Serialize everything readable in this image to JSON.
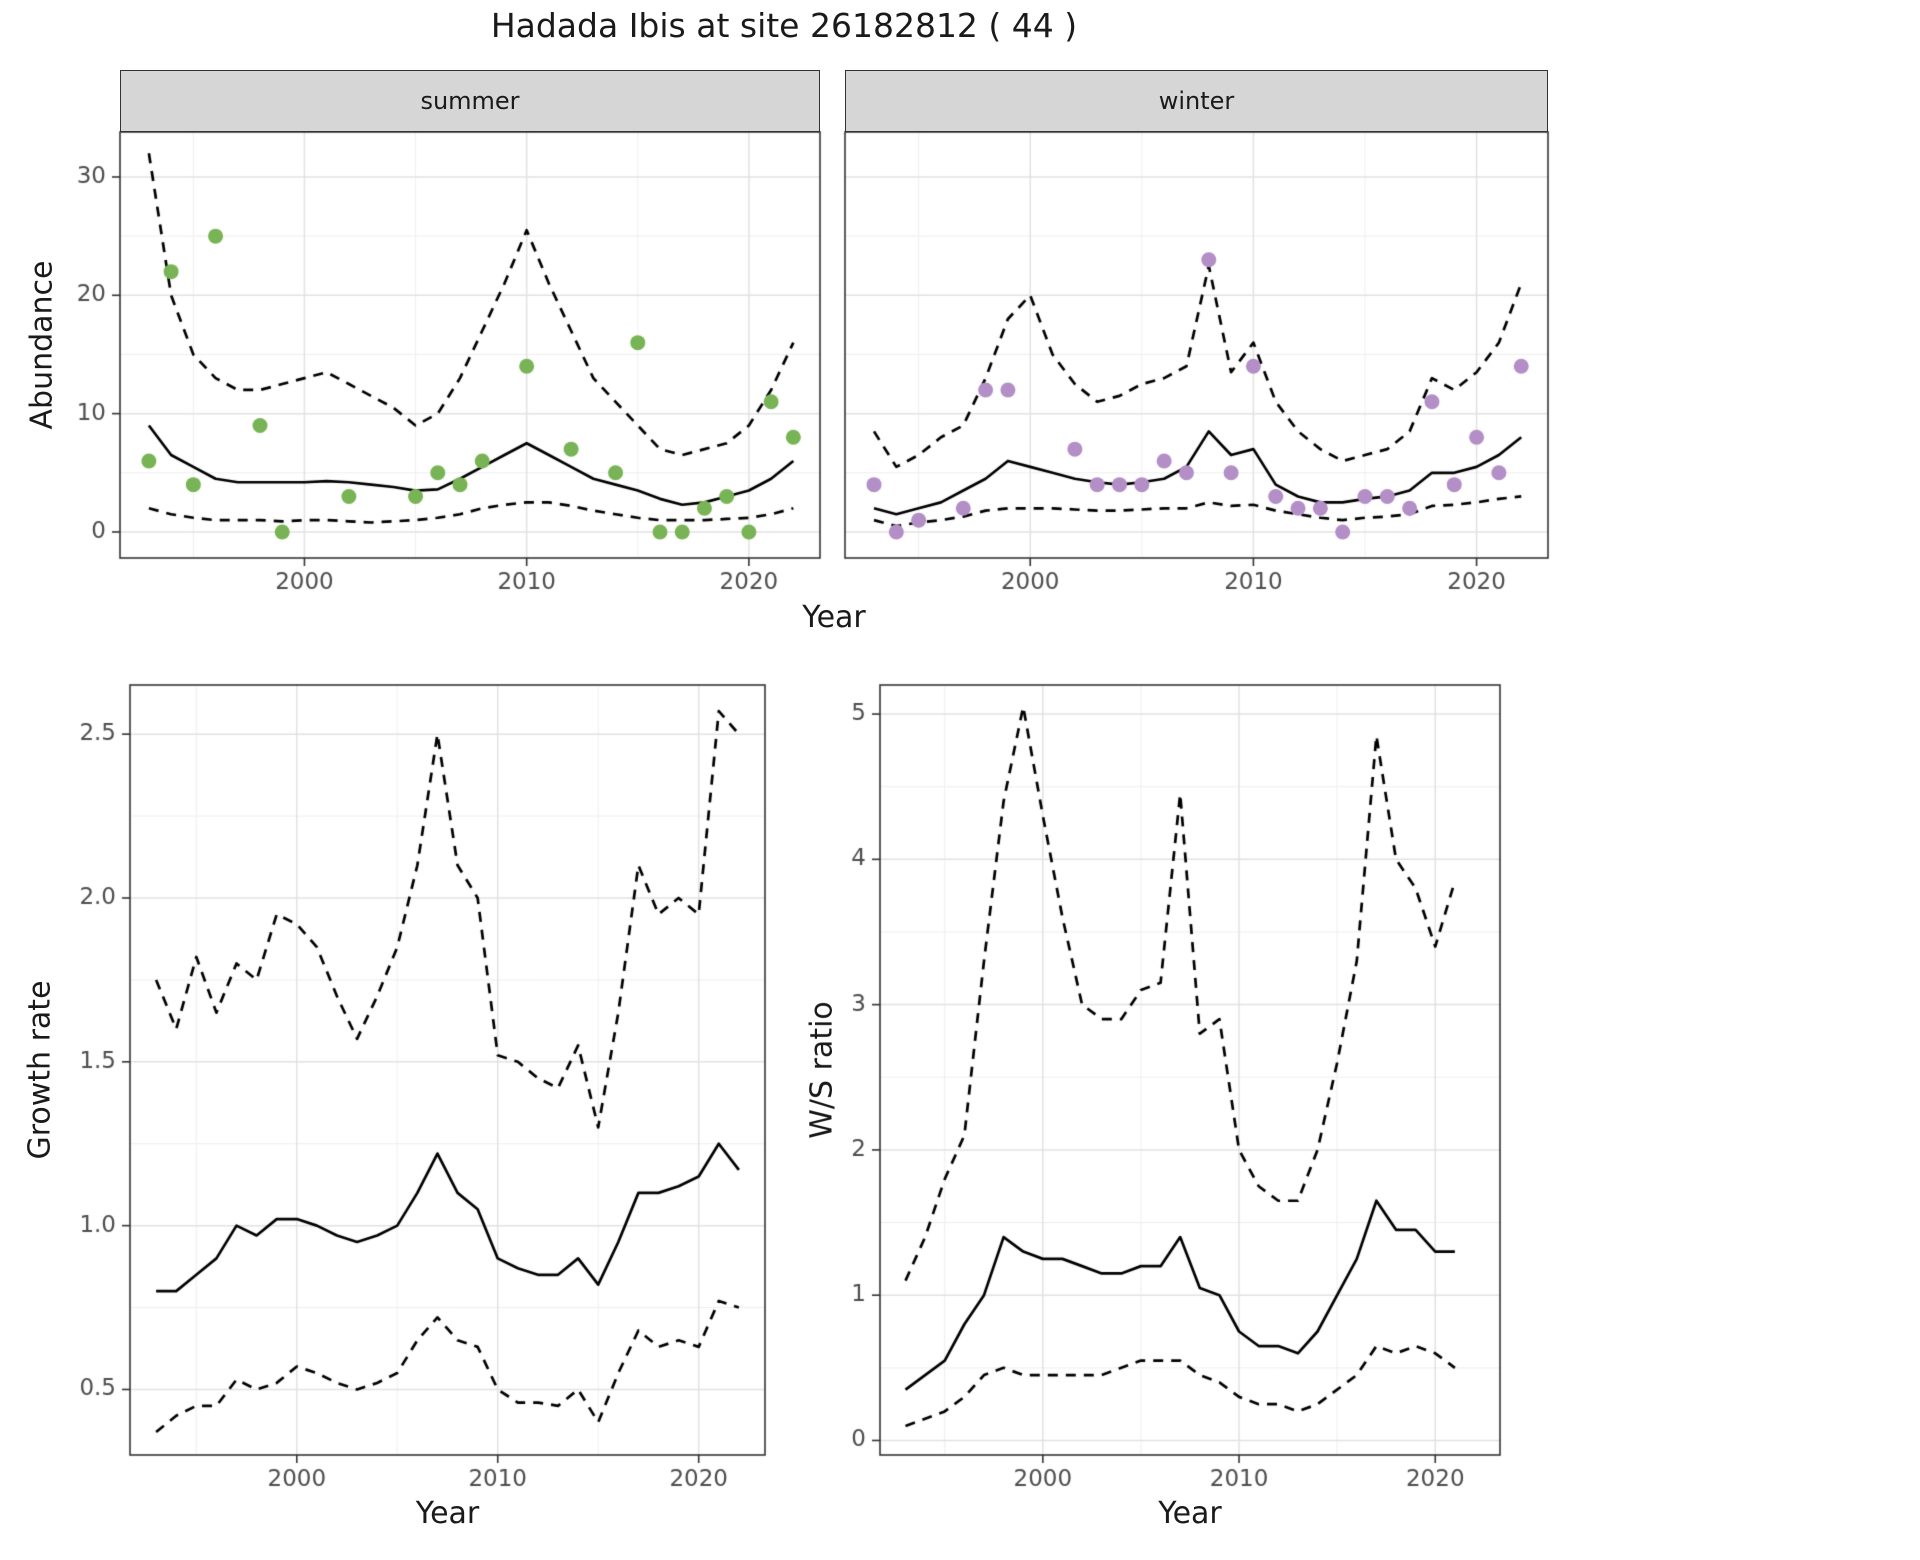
{
  "title": "Hadada Ibis at site 26182812 ( 44 )",
  "colors": {
    "summer_points": "#78b455",
    "winter_points": "#b48ec6",
    "line": "#000000",
    "grid_major": "#e2e2e2",
    "grid_minor": "#efefef",
    "strip_bg": "#d6d6d6",
    "panel_border": "#333333",
    "tick_text": "#4d4d4d"
  },
  "chart_data": [
    {
      "id": "summer",
      "type": "line+scatter",
      "facet_label": "summer",
      "xlabel": "Year",
      "ylabel": "Abundance",
      "xlim": [
        1991.7,
        2023.2
      ],
      "ylim": [
        -2.2,
        33.8
      ],
      "xticks": [
        2000,
        2010,
        2020
      ],
      "xtick_labels": [
        "2000",
        "2010",
        "2020"
      ],
      "yticks": [
        0,
        10,
        20,
        30
      ],
      "ytick_labels": [
        "0",
        "10",
        "20",
        "30"
      ],
      "x_minor": [
        1995,
        2005,
        2015
      ],
      "y_minor": [
        5,
        15,
        25
      ],
      "years": [
        1993,
        1994,
        1995,
        1996,
        1997,
        1998,
        1999,
        2000,
        2001,
        2002,
        2003,
        2004,
        2005,
        2006,
        2007,
        2008,
        2009,
        2010,
        2011,
        2012,
        2013,
        2014,
        2015,
        2016,
        2017,
        2018,
        2019,
        2020,
        2021,
        2022
      ],
      "median": [
        9,
        6.5,
        5.5,
        4.5,
        4.2,
        4.2,
        4.2,
        4.2,
        4.3,
        4.2,
        4,
        3.8,
        3.5,
        3.6,
        4.5,
        5.5,
        6.5,
        7.5,
        6.5,
        5.5,
        4.5,
        4,
        3.5,
        2.8,
        2.3,
        2.5,
        3,
        3.5,
        4.5,
        6
      ],
      "upper": [
        32,
        20,
        15,
        13,
        12,
        12,
        12.5,
        13,
        13.5,
        12.5,
        11.5,
        10.5,
        9,
        10,
        13,
        17,
        21,
        25.5,
        21,
        17,
        13,
        11,
        9,
        7,
        6.5,
        7,
        7.5,
        9,
        12,
        16
      ],
      "lower": [
        2,
        1.5,
        1.2,
        1,
        1,
        1,
        0.9,
        1,
        1,
        0.9,
        0.8,
        0.9,
        1,
        1.2,
        1.5,
        2,
        2.3,
        2.5,
        2.5,
        2.2,
        1.8,
        1.5,
        1.2,
        1,
        1,
        1,
        1.1,
        1.2,
        1.5,
        2
      ],
      "points": {
        "color": "#78b455",
        "years": [
          1993,
          1994,
          1995,
          1996,
          1998,
          1999,
          2002,
          2005,
          2006,
          2007,
          2008,
          2010,
          2012,
          2014,
          2015,
          2016,
          2017,
          2018,
          2019,
          2020,
          2021,
          2022
        ],
        "values": [
          6,
          22,
          4,
          25,
          9,
          0,
          3,
          3,
          5,
          4,
          6,
          14,
          7,
          5,
          16,
          0,
          0,
          2,
          3,
          0,
          11,
          8
        ]
      }
    },
    {
      "id": "winter",
      "type": "line+scatter",
      "facet_label": "winter",
      "xlabel": "Year",
      "ylabel": "Abundance",
      "xlim": [
        1991.7,
        2023.2
      ],
      "ylim": [
        -2.2,
        33.8
      ],
      "xticks": [
        2000,
        2010,
        2020
      ],
      "xtick_labels": [
        "2000",
        "2010",
        "2020"
      ],
      "yticks": [
        0,
        10,
        20,
        30
      ],
      "ytick_labels": [
        "0",
        "10",
        "20",
        "30"
      ],
      "x_minor": [
        1995,
        2005,
        2015
      ],
      "y_minor": [
        5,
        15,
        25
      ],
      "years": [
        1993,
        1994,
        1995,
        1996,
        1997,
        1998,
        1999,
        2000,
        2001,
        2002,
        2003,
        2004,
        2005,
        2006,
        2007,
        2008,
        2009,
        2010,
        2011,
        2012,
        2013,
        2014,
        2015,
        2016,
        2017,
        2018,
        2019,
        2020,
        2021,
        2022
      ],
      "median": [
        2,
        1.5,
        2,
        2.5,
        3.5,
        4.5,
        6,
        5.5,
        5,
        4.5,
        4.2,
        4,
        4.2,
        4.5,
        5.5,
        8.5,
        6.5,
        7,
        4,
        3,
        2.5,
        2.5,
        2.8,
        3,
        3.5,
        5,
        5,
        5.5,
        6.5,
        8
      ],
      "upper": [
        8.5,
        5.5,
        6.5,
        8,
        9,
        13,
        18,
        20,
        15,
        12.5,
        11,
        11.5,
        12.5,
        13,
        14,
        22.5,
        13.5,
        16,
        11,
        8.5,
        7,
        6,
        6.5,
        7,
        8.5,
        13,
        12,
        13.5,
        16,
        21
      ],
      "lower": [
        1,
        0.5,
        0.8,
        1,
        1.3,
        1.8,
        2,
        2,
        2,
        1.9,
        1.8,
        1.8,
        1.9,
        2,
        2,
        2.5,
        2.2,
        2.3,
        1.8,
        1.5,
        1.2,
        1,
        1.2,
        1.3,
        1.5,
        2.2,
        2.3,
        2.5,
        2.8,
        3
      ],
      "points": {
        "color": "#b48ec6",
        "years": [
          1993,
          1994,
          1995,
          1997,
          1998,
          1999,
          2002,
          2003,
          2004,
          2005,
          2006,
          2007,
          2008,
          2009,
          2010,
          2011,
          2012,
          2013,
          2014,
          2015,
          2016,
          2017,
          2018,
          2019,
          2020,
          2021,
          2022
        ],
        "values": [
          4,
          0,
          1,
          2,
          12,
          12,
          7,
          4,
          4,
          4,
          6,
          5,
          23,
          5,
          14,
          3,
          2,
          2,
          0,
          3,
          3,
          2,
          11,
          4,
          8,
          5,
          14
        ]
      }
    },
    {
      "id": "growth",
      "type": "line",
      "facet_label": "",
      "xlabel": "Year",
      "ylabel": "Growth rate",
      "xlim": [
        1991.7,
        2023.3
      ],
      "ylim": [
        0.3,
        2.65
      ],
      "xticks": [
        2000,
        2010,
        2020
      ],
      "xtick_labels": [
        "2000",
        "2010",
        "2020"
      ],
      "yticks": [
        0.5,
        1.0,
        1.5,
        2.0,
        2.5
      ],
      "ytick_labels": [
        "0.5",
        "1.0",
        "1.5",
        "2.0",
        "2.5"
      ],
      "x_minor": [
        1995,
        2005,
        2015
      ],
      "y_minor": [
        0.75,
        1.25,
        1.75,
        2.25
      ],
      "years": [
        1993,
        1994,
        1995,
        1996,
        1997,
        1998,
        1999,
        2000,
        2001,
        2002,
        2003,
        2004,
        2005,
        2006,
        2007,
        2008,
        2009,
        2010,
        2011,
        2012,
        2013,
        2014,
        2015,
        2016,
        2017,
        2018,
        2019,
        2020,
        2021,
        2022
      ],
      "median": [
        0.8,
        0.8,
        0.85,
        0.9,
        1.0,
        0.97,
        1.02,
        1.02,
        1.0,
        0.97,
        0.95,
        0.97,
        1.0,
        1.1,
        1.22,
        1.1,
        1.05,
        0.9,
        0.87,
        0.85,
        0.85,
        0.9,
        0.82,
        0.95,
        1.1,
        1.1,
        1.12,
        1.15,
        1.25,
        1.17
      ],
      "upper": [
        1.75,
        1.6,
        1.82,
        1.65,
        1.8,
        1.75,
        1.95,
        1.92,
        1.85,
        1.7,
        1.57,
        1.7,
        1.85,
        2.1,
        2.5,
        2.1,
        2.0,
        1.52,
        1.5,
        1.45,
        1.42,
        1.55,
        1.3,
        1.65,
        2.1,
        1.95,
        2.0,
        1.95,
        2.57,
        2.5
      ],
      "lower": [
        0.37,
        0.42,
        0.45,
        0.45,
        0.53,
        0.5,
        0.52,
        0.57,
        0.55,
        0.52,
        0.5,
        0.52,
        0.55,
        0.65,
        0.72,
        0.65,
        0.63,
        0.5,
        0.46,
        0.46,
        0.45,
        0.5,
        0.4,
        0.55,
        0.68,
        0.63,
        0.65,
        0.63,
        0.77,
        0.75
      ]
    },
    {
      "id": "ratio",
      "type": "line",
      "facet_label": "",
      "xlabel": "Year",
      "ylabel": "W/S ratio",
      "xlim": [
        1991.7,
        2023.3
      ],
      "ylim": [
        -0.1,
        5.2
      ],
      "xticks": [
        2000,
        2010,
        2020
      ],
      "xtick_labels": [
        "2000",
        "2010",
        "2020"
      ],
      "yticks": [
        0,
        1,
        2,
        3,
        4,
        5
      ],
      "ytick_labels": [
        "0",
        "1",
        "2",
        "3",
        "4",
        "5"
      ],
      "x_minor": [
        1995,
        2005,
        2015
      ],
      "y_minor": [
        0.5,
        1.5,
        2.5,
        3.5,
        4.5
      ],
      "years": [
        1993,
        1994,
        1995,
        1996,
        1997,
        1998,
        1999,
        2000,
        2001,
        2002,
        2003,
        2004,
        2005,
        2006,
        2007,
        2008,
        2009,
        2010,
        2011,
        2012,
        2013,
        2014,
        2015,
        2016,
        2017,
        2018,
        2019,
        2020,
        2021
      ],
      "median": [
        0.35,
        0.45,
        0.55,
        0.8,
        1.0,
        1.4,
        1.3,
        1.25,
        1.25,
        1.2,
        1.15,
        1.15,
        1.2,
        1.2,
        1.4,
        1.05,
        1.0,
        0.75,
        0.65,
        0.65,
        0.6,
        0.75,
        1.0,
        1.25,
        1.65,
        1.45,
        1.45,
        1.3,
        1.3
      ],
      "upper": [
        1.1,
        1.4,
        1.8,
        2.1,
        3.3,
        4.4,
        5.05,
        4.3,
        3.6,
        3.0,
        2.9,
        2.9,
        3.1,
        3.15,
        4.45,
        2.8,
        2.9,
        2.0,
        1.75,
        1.65,
        1.65,
        2.0,
        2.6,
        3.3,
        4.85,
        4.0,
        3.8,
        3.4,
        3.85
      ],
      "lower": [
        0.1,
        0.15,
        0.2,
        0.3,
        0.45,
        0.5,
        0.45,
        0.45,
        0.45,
        0.45,
        0.45,
        0.5,
        0.55,
        0.55,
        0.55,
        0.45,
        0.4,
        0.3,
        0.25,
        0.25,
        0.2,
        0.25,
        0.35,
        0.45,
        0.65,
        0.6,
        0.65,
        0.6,
        0.5
      ]
    }
  ]
}
